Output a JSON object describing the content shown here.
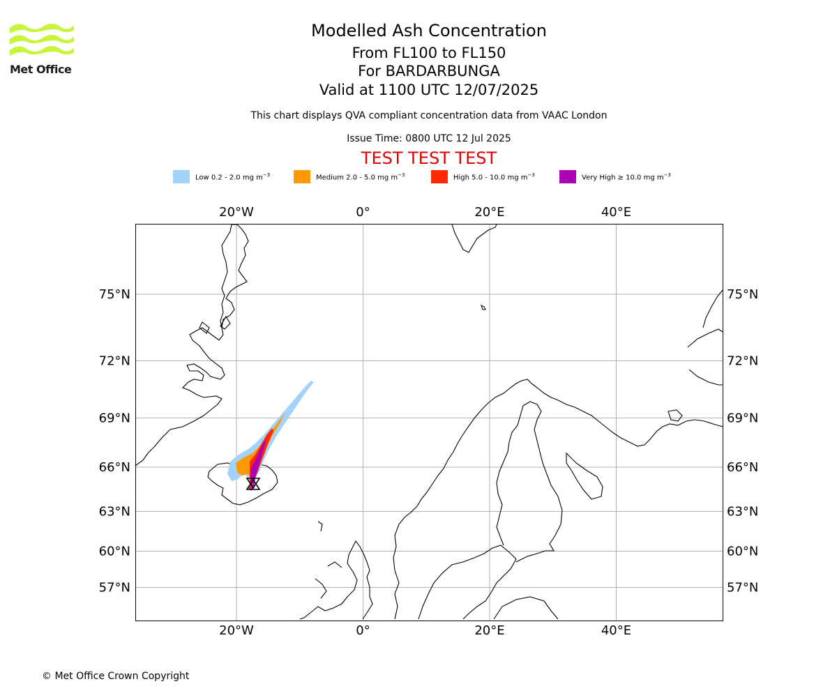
{
  "logo": {
    "text": "Met Office",
    "color": "#c8f53a"
  },
  "header": {
    "title": "Modelled Ash Concentration",
    "flight_levels": "From FL100 to FL150",
    "volcano": "For BARDARBUNGA",
    "valid_time": "Valid at 1100 UTC 12/07/2025",
    "description": "This chart displays QVA compliant concentration data from VAAC London",
    "issue_time": "Issue Time: 0800 UTC 12 Jul 2025",
    "test_banner": "TEST TEST TEST"
  },
  "legend": [
    {
      "label": "Low 0.2 - 2.0 mg m",
      "sup": "−3",
      "color": "#a3d3fa"
    },
    {
      "label": "Medium 2.0 - 5.0 mg m",
      "sup": "−3",
      "color": "#ff9a05"
    },
    {
      "label": "High 5.0 - 10.0 mg m",
      "sup": "−3",
      "color": "#ff2a00"
    },
    {
      "label": "Very High ≥ 10.0 mg m",
      "sup": "−3",
      "color": "#ac00b5"
    }
  ],
  "map": {
    "lon_ticks": [
      {
        "lon": -20,
        "label": "20°W"
      },
      {
        "lon": 0,
        "label": "0°"
      },
      {
        "lon": 20,
        "label": "20°E"
      },
      {
        "lon": 40,
        "label": "40°E"
      }
    ],
    "lat_ticks": [
      {
        "lat": 75,
        "label": "75°N"
      },
      {
        "lat": 72,
        "label": "72°N"
      },
      {
        "lat": 69,
        "label": "69°N"
      },
      {
        "lat": 66,
        "label": "66°N"
      },
      {
        "lat": 63,
        "label": "63°N"
      },
      {
        "lat": 60,
        "label": "60°N"
      },
      {
        "lat": 57,
        "label": "57°N"
      }
    ],
    "gridline_color": "#b0b0b0"
  },
  "footer": {
    "copyright": "© Met Office Crown Copyright"
  }
}
